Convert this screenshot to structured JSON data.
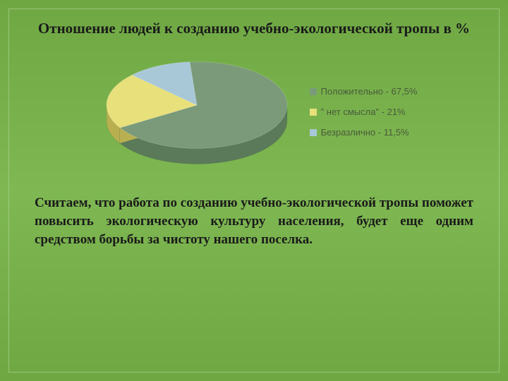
{
  "title": "Отношение людей к созданию учебно-экологической тропы в %",
  "title_fontsize": 21,
  "chart": {
    "type": "pie",
    "slices": [
      {
        "label": "Положительно - 67,5%",
        "value": 67.5,
        "color": "#7a9a7a",
        "side_color": "#5a7a5a"
      },
      {
        "label": "\" нет смысла\" - 21%",
        "value": 21.0,
        "color": "#e8e07a",
        "side_color": "#b8b050"
      },
      {
        "label": "Безразлично - 11,5%",
        "value": 11.5,
        "color": "#a8c8d8",
        "side_color": "#7898b0"
      }
    ],
    "background": "transparent",
    "legend_fontsize": 13,
    "legend_text_color": "#4a5a3a",
    "tilt": 0.48,
    "depth": 22,
    "radius": 128
  },
  "body_text": "Считаем, что работа по созданию учебно-экологической тропы поможет повысить экологическую культуру населения, будет еще одним средством борьбы за чистоту нашего поселка.",
  "body_fontsize": 19
}
